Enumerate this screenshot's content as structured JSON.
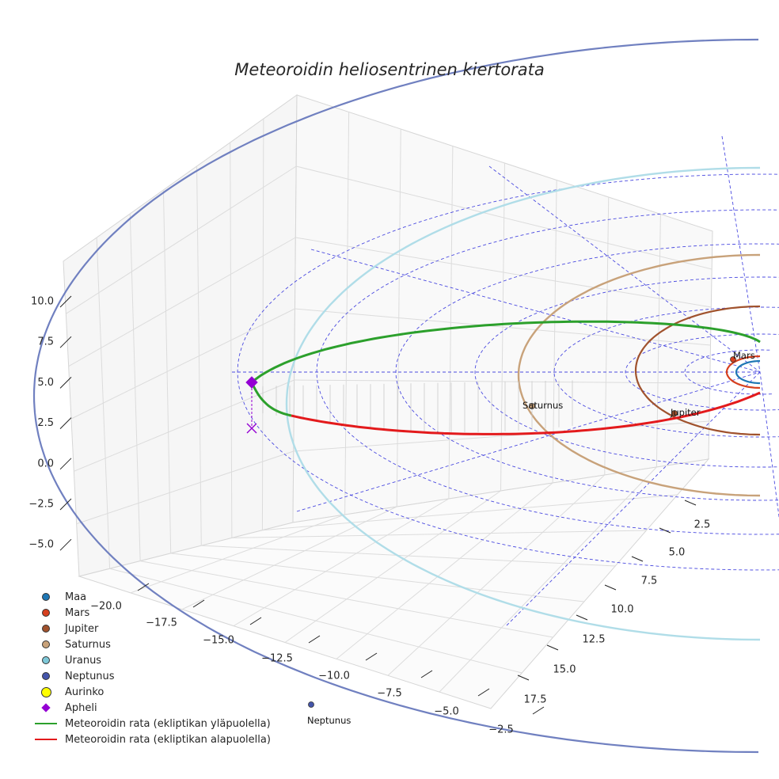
{
  "chart_data": {
    "type": "scatter",
    "projection": "3d",
    "title": "Meteoroidin heliosentrinen kiertorata",
    "x_ticks": [
      "−20.0",
      "−17.5",
      "−15.0",
      "−12.5",
      "−10.0",
      "−7.5",
      "−5.0",
      "−2.5"
    ],
    "y_ticks": [
      "2.5",
      "5.0",
      "7.5",
      "10.0",
      "12.5",
      "15.0",
      "17.5"
    ],
    "z_ticks": [
      "10.0",
      "7.5",
      "5.0",
      "2.5",
      "0.0",
      "−2.5",
      "−5.0"
    ],
    "xlim": [
      -22,
      -2.5
    ],
    "ylim": [
      0,
      18
    ],
    "zlim": [
      -6,
      11
    ],
    "planets": [
      {
        "name": "Maa",
        "color": "#1f77b4",
        "label": ""
      },
      {
        "name": "Mars",
        "color": "#d6401f",
        "label": "Mars"
      },
      {
        "name": "Jupiter",
        "color": "#a0522d",
        "label": "Jupiter"
      },
      {
        "name": "Saturnus",
        "color": "#c8a27a",
        "label": "Saturnus"
      },
      {
        "name": "Uranus",
        "color": "#7ec8d8",
        "label": ""
      },
      {
        "name": "Neptunus",
        "color": "#4455aa",
        "label": "Neptunus"
      }
    ],
    "sun": {
      "name": "Aurinko",
      "color": "#ffff00"
    },
    "aphelion": {
      "name": "Apheli",
      "color": "#9400d3"
    },
    "orbit_above": {
      "name": "Meteoroidin rata (ekliptikan yläpuolella)",
      "color": "#2ca02c"
    },
    "orbit_below": {
      "name": "Meteoroidin rata (ekliptikan alapuolella)",
      "color": "#e31a1c"
    }
  },
  "legend": [
    {
      "label": "Maa",
      "kind": "dot",
      "color": "#1f77b4"
    },
    {
      "label": "Mars",
      "kind": "dot",
      "color": "#d6401f"
    },
    {
      "label": "Jupiter",
      "kind": "dot",
      "color": "#a0522d"
    },
    {
      "label": "Saturnus",
      "kind": "dot",
      "color": "#c8a27a"
    },
    {
      "label": "Uranus",
      "kind": "dot",
      "color": "#7ec8d8"
    },
    {
      "label": "Neptunus",
      "kind": "dot",
      "color": "#4455aa"
    },
    {
      "label": "Aurinko",
      "kind": "big",
      "color": "#ffff00"
    },
    {
      "label": "Apheli",
      "kind": "diamond",
      "color": "#9400d3"
    },
    {
      "label": "Meteoroidin rata (ekliptikan yläpuolella)",
      "kind": "line",
      "color": "#2ca02c"
    },
    {
      "label": "Meteoroidin rata (ekliptikan alapuolella)",
      "kind": "line",
      "color": "#e31a1c"
    }
  ]
}
